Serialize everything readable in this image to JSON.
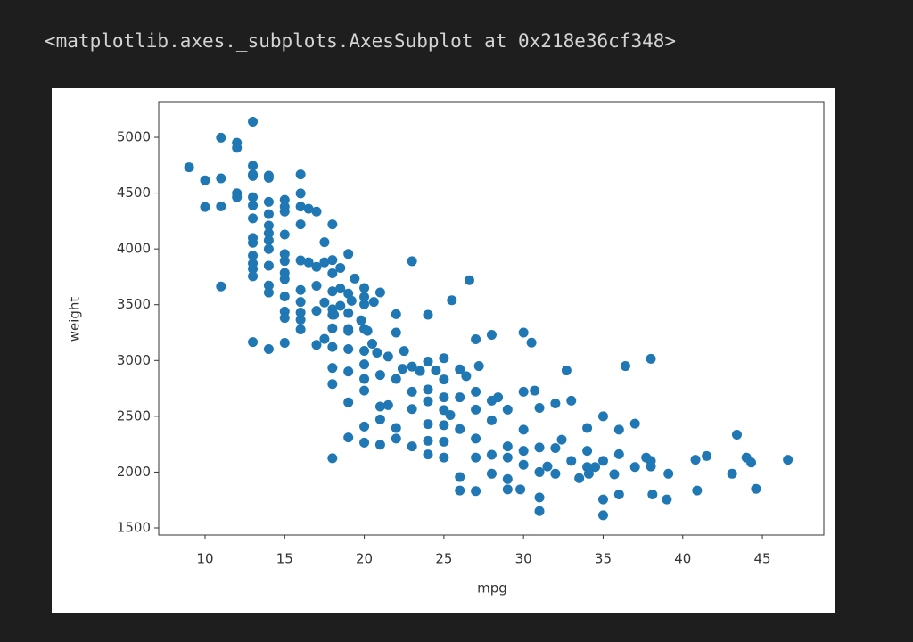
{
  "output_text": "<matplotlib.axes._subplots.AxesSubplot at 0x218e36cf348>",
  "chart_data": {
    "type": "scatter",
    "xlabel": "mpg",
    "ylabel": "weight",
    "x": [
      9,
      10,
      10,
      11,
      11,
      11,
      11,
      12,
      12,
      12,
      12,
      13,
      13,
      13,
      13,
      13,
      13,
      13,
      13,
      13,
      13,
      13,
      13,
      13,
      13,
      14,
      14,
      14,
      14,
      14,
      14,
      14,
      14,
      14,
      14,
      14,
      14,
      15,
      15,
      15,
      15,
      15,
      15,
      15,
      15,
      15,
      15,
      15,
      15,
      16,
      16,
      16,
      16,
      16,
      16,
      16,
      16,
      16,
      16,
      16.5,
      16.5,
      17,
      17,
      17,
      17,
      17,
      17.5,
      17.5,
      17.5,
      17.5,
      18,
      18,
      18,
      18,
      18,
      18,
      18,
      18,
      18,
      18,
      18,
      18.5,
      18.5,
      18.5,
      18.1,
      19,
      19,
      19,
      19,
      19,
      19,
      19,
      19,
      19,
      19.2,
      19.4,
      19.8,
      20,
      20,
      20,
      20,
      20,
      20,
      20,
      20,
      20,
      20,
      20.2,
      20.5,
      20.6,
      20.8,
      21,
      21,
      21,
      21,
      21,
      21.5,
      21.5,
      22,
      22,
      22,
      22,
      22,
      22.4,
      22.5,
      23,
      23,
      23,
      23,
      23,
      23.5,
      24,
      24,
      24,
      24,
      24,
      24,
      24,
      24.5,
      25,
      25,
      25,
      25,
      25,
      25,
      25,
      25.4,
      25.5,
      26,
      26,
      26,
      26,
      26,
      26.4,
      26.6,
      27,
      27,
      27,
      27,
      27,
      27,
      27.2,
      28,
      28,
      28,
      28,
      28,
      28.4,
      29,
      29,
      29,
      29,
      29,
      29.8,
      30,
      30,
      30,
      30,
      30,
      30.5,
      30.7,
      31,
      31,
      31,
      31,
      31,
      31.5,
      32,
      32,
      32,
      32.4,
      32.7,
      33,
      33,
      33.5,
      34,
      34,
      34,
      34.1,
      34.5,
      35,
      35,
      35,
      35.7,
      36,
      36,
      36,
      36.4,
      37,
      37,
      37.7,
      38,
      38,
      38,
      39,
      39.1,
      40.8,
      41.5,
      43.1,
      43.4,
      44,
      44.3,
      44.6,
      46.6,
      40.9,
      38.1,
      35
    ],
    "series": [
      {
        "color": "#1f77b4",
        "values": [
          4732,
          4615,
          4376,
          4997,
          4633,
          4382,
          3664,
          4951,
          4906,
          4499,
          4464,
          5140,
          4746,
          4668,
          4654,
          4464,
          4390,
          4274,
          4098,
          4055,
          3940,
          3870,
          3821,
          3755,
          3165,
          4657,
          4638,
          4422,
          4312,
          4209,
          4141,
          4077,
          3999,
          3850,
          3672,
          3609,
          3102,
          4440,
          4379,
          4335,
          4129,
          3954,
          3892,
          3785,
          3730,
          3574,
          3439,
          3381,
          3158,
          4668,
          4498,
          4380,
          4220,
          3897,
          3632,
          3525,
          3430,
          3365,
          3278,
          4360,
          3880,
          4335,
          3840,
          3670,
          3445,
          3140,
          4060,
          3880,
          3520,
          3193,
          4220,
          3900,
          3782,
          3620,
          3459,
          3410,
          3288,
          3121,
          2933,
          2789,
          2124,
          3830,
          3645,
          3490,
          3410,
          3955,
          3600,
          3425,
          3282,
          3265,
          3102,
          2901,
          2625,
          2310,
          3535,
          3735,
          3360,
          3650,
          3570,
          3504,
          3282,
          3086,
          2965,
          2835,
          2730,
          2408,
          2264,
          3265,
          3150,
          3525,
          3070,
          3610,
          2870,
          2587,
          2472,
          2245,
          3035,
          2600,
          3415,
          3250,
          2835,
          2395,
          2300,
          2925,
          3085,
          3890,
          2945,
          2720,
          2565,
          2230,
          2905,
          3410,
          2990,
          2740,
          2634,
          2430,
          2280,
          2158,
          2910,
          3020,
          2830,
          2670,
          2556,
          2420,
          2272,
          2130,
          2511,
          3540,
          2920,
          2670,
          2385,
          1955,
          1835,
          2860,
          3720,
          3190,
          2720,
          2560,
          2300,
          2130,
          1830,
          2950,
          3230,
          2640,
          2464,
          2155,
          1985,
          2670,
          2560,
          2230,
          2130,
          1937,
          1845,
          1845,
          3250,
          2720,
          2380,
          2065,
          2190,
          3160,
          2730,
          2575,
          2220,
          2000,
          1773,
          1650,
          2050,
          2615,
          2215,
          1985,
          2290,
          2910,
          2640,
          2100,
          1945,
          2395,
          2190,
          2045,
          1985,
          2045,
          2500,
          1613,
          1755,
          1980,
          2380,
          2160,
          1800,
          2950,
          2434,
          2045,
          2130,
          3015,
          2050,
          2100,
          1755,
          1985,
          2110,
          2144,
          1985,
          2335,
          2130,
          2085,
          1850,
          2110,
          1835,
          1800,
          2100
        ]
      }
    ],
    "xlim": [
      7.09,
      48.86
    ],
    "ylim": [
      1436,
      5320
    ],
    "xticks": [
      10,
      15,
      20,
      25,
      30,
      35,
      40,
      45
    ],
    "yticks": [
      1500,
      2000,
      2500,
      3000,
      3500,
      4000,
      4500,
      5000
    ]
  }
}
